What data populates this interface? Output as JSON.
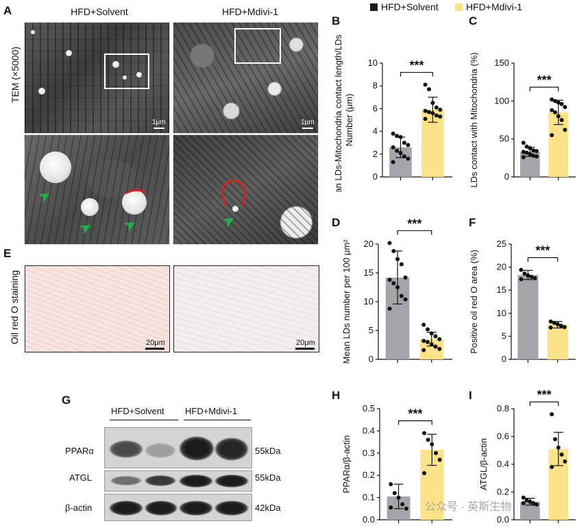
{
  "legend": {
    "items": [
      {
        "label": "HFD+Solvent",
        "color": "#a5a4ab"
      },
      {
        "label": "HFD+Mdivi-1",
        "color": "#fce38a"
      }
    ]
  },
  "panelA": {
    "letter": "A",
    "side_label": "TEM (×5000)",
    "col_titles": [
      "HFD+Solvent",
      "HFD+Mdivi-1"
    ],
    "scale_text": "1μm"
  },
  "panelE": {
    "letter": "E",
    "side_label": "Oil red O staining",
    "scale_text": "20μm"
  },
  "panelG": {
    "letter": "G",
    "group_labels": [
      "HFD+Solvent",
      "HFD+Mdivi-1"
    ],
    "rows": [
      {
        "label": "PPARα",
        "kda": "55kDa"
      },
      {
        "label": "ATGL",
        "kda": "55kDa"
      },
      {
        "label": "β-actin",
        "kda": "42kDa"
      }
    ]
  },
  "watermark": "公众号 · 英斯生物",
  "chart_data": [
    {
      "id": "B",
      "letter": "B",
      "type": "bar",
      "ylabel_lines": [
        "Mean LDs-Mitochondria contact length/LDs",
        "Number (μm)"
      ],
      "ylim": [
        0,
        10
      ],
      "yticks": [
        "0",
        "2",
        "4",
        "6",
        "8",
        "10"
      ],
      "categories": [
        "HFD+Solvent",
        "HFD+Mdivi-1"
      ],
      "values": [
        2.6,
        5.9
      ],
      "sd": [
        0.9,
        1.1
      ],
      "points": [
        [
          3.8,
          3.6,
          3.5,
          3.0,
          2.8,
          2.6,
          2.3,
          2.1,
          1.8,
          1.6,
          1.3
        ],
        [
          8.1,
          7.7,
          6.5,
          6.1,
          5.9,
          5.8,
          5.7,
          5.6,
          5.4,
          5.3,
          5.1
        ]
      ],
      "significance": "***"
    },
    {
      "id": "C",
      "letter": "C",
      "type": "bar",
      "ylabel_lines": [
        "LDs contact with Mitochondria (%)"
      ],
      "ylim": [
        0,
        150
      ],
      "yticks": [
        "0",
        "50",
        "100",
        "150"
      ],
      "categories": [
        "HFD+Solvent",
        "HFD+Mdivi-1"
      ],
      "values": [
        33,
        85
      ],
      "sd": [
        6,
        16
      ],
      "points": [
        [
          45,
          40,
          38,
          35,
          34,
          33,
          32,
          30,
          28,
          27,
          26
        ],
        [
          102,
          100,
          98,
          96,
          92,
          88,
          85,
          80,
          75,
          62,
          55
        ]
      ],
      "significance": "***"
    },
    {
      "id": "D",
      "letter": "D",
      "type": "bar",
      "ylabel_lines": [
        "Mean LDs number per 100 μm²"
      ],
      "ylim": [
        0,
        20
      ],
      "yticks": [
        "0",
        "5",
        "10",
        "15",
        "20"
      ],
      "categories": [
        "HFD+Solvent",
        "HFD+Mdivi-1"
      ],
      "values": [
        14.2,
        3.5
      ],
      "sd": [
        4.6,
        1.2
      ],
      "points": [
        [
          20.2,
          18.8,
          17.4,
          16.5,
          14.2,
          13.8,
          13.2,
          12.5,
          11.0,
          10.4,
          8.8
        ],
        [
          6.0,
          5.2,
          4.5,
          4.0,
          3.5,
          3.2,
          3.0,
          2.6,
          2.2,
          1.8,
          1.6
        ]
      ],
      "significance": "***"
    },
    {
      "id": "F",
      "letter": "F",
      "type": "bar",
      "ylabel_lines": [
        "Positive oil red O area (%)"
      ],
      "ylim": [
        0,
        25
      ],
      "yticks": [
        "0",
        "5",
        "10",
        "15",
        "20",
        "25"
      ],
      "categories": [
        "HFD+Solvent",
        "HFD+Mdivi-1"
      ],
      "values": [
        18.3,
        7.5
      ],
      "sd": [
        1.0,
        0.7
      ],
      "points": [
        [
          19.4,
          18.6,
          18.2,
          17.9,
          17.6,
          17.4
        ],
        [
          8.2,
          7.9,
          7.6,
          7.3,
          7.0,
          6.9
        ]
      ],
      "significance": "***"
    },
    {
      "id": "H",
      "letter": "H",
      "type": "bar",
      "ylabel_lines": [
        "PPARα/β-actin"
      ],
      "ylim": [
        0,
        0.5
      ],
      "yticks": [
        "0.0",
        "0.1",
        "0.2",
        "0.3",
        "0.4",
        "0.5"
      ],
      "categories": [
        "HFD+Solvent",
        "HFD+Mdivi-1"
      ],
      "values": [
        0.105,
        0.315
      ],
      "sd": [
        0.055,
        0.07
      ],
      "points": [
        [
          0.16,
          0.12,
          0.1,
          0.07,
          0.05,
          0.055
        ],
        [
          0.39,
          0.36,
          0.34,
          0.3,
          0.27,
          0.21
        ]
      ],
      "significance": "***"
    },
    {
      "id": "I",
      "letter": "I",
      "type": "bar",
      "ylabel_lines": [
        "ATGL/β-actin"
      ],
      "ylim": [
        0,
        0.8
      ],
      "yticks": [
        "0.0",
        "0.2",
        "0.4",
        "0.6",
        "0.8"
      ],
      "categories": [
        "HFD+Solvent",
        "HFD+Mdivi-1"
      ],
      "values": [
        0.13,
        0.51
      ],
      "sd": [
        0.025,
        0.12
      ],
      "points": [
        [
          0.16,
          0.14,
          0.13,
          0.12,
          0.11,
          0.12
        ],
        [
          0.76,
          0.58,
          0.52,
          0.47,
          0.42,
          0.38
        ]
      ],
      "significance": "***"
    }
  ]
}
